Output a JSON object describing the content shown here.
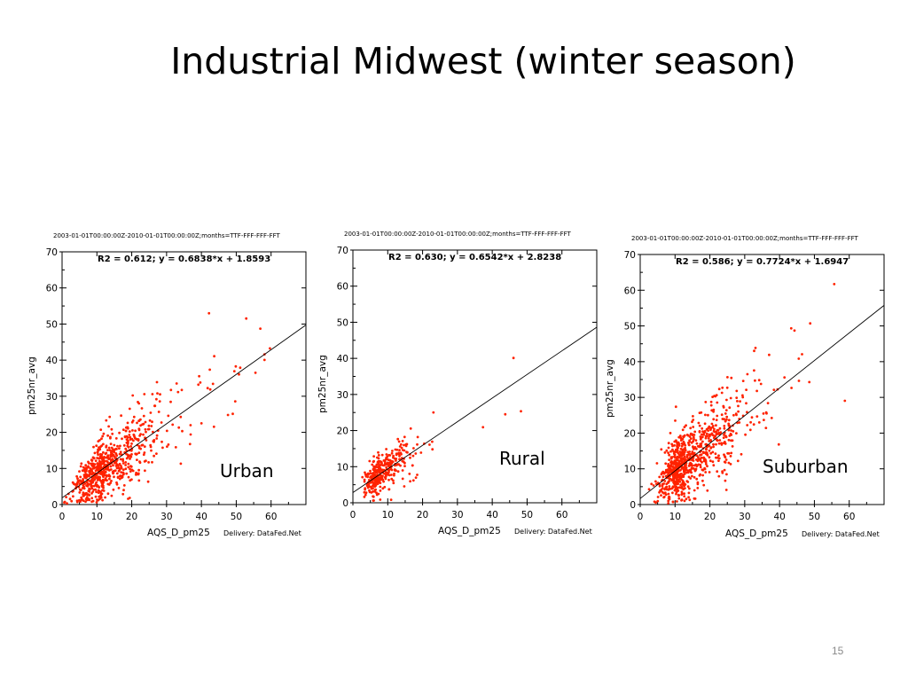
{
  "slide": {
    "title": "Industrial Midwest (winter season)",
    "page_number": "15"
  },
  "chart_data": [
    {
      "type": "scatter",
      "header": "2003-01-01T00:00:00Z-2010-01-01T00:00:00Z;months=TTF-FFF-FFF-FFT",
      "equation": "R2 = 0.612; y = 0.6838*x + 1.8593",
      "region_label": "Urban",
      "xlabel": "AQS_D_pm25",
      "ylabel": "pm25nr_avg",
      "delivery": "Delivery: DataFed.Net",
      "xlim": [
        0,
        70
      ],
      "ylim": [
        0,
        70
      ],
      "xticks": [
        0,
        10,
        20,
        30,
        40,
        50,
        60
      ],
      "yticks": [
        0,
        10,
        20,
        30,
        40,
        50,
        60,
        70
      ],
      "fit": {
        "slope": 0.6838,
        "intercept": 1.8593,
        "r2": 0.612
      },
      "point_color": "#ff2200",
      "cloud": {
        "x_center": 12,
        "x_spread": 9,
        "x_max": 62,
        "residual_sd": 4.2,
        "count": 700
      }
    },
    {
      "type": "scatter",
      "header": "2003-01-01T00:00:00Z-2010-01-01T00:00:00Z;months=TTF-FFF-FFF-FFT",
      "equation": "R2 = 0.630; y = 0.6542*x + 2.8238",
      "region_label": "Rural",
      "xlabel": "AQS_D_pm25",
      "ylabel": "pm25nr_avg",
      "delivery": "Delivery: DataFed.Net",
      "xlim": [
        0,
        70
      ],
      "ylim": [
        0,
        70
      ],
      "xticks": [
        0,
        10,
        20,
        30,
        40,
        50,
        60
      ],
      "yticks": [
        0,
        10,
        20,
        30,
        40,
        50,
        60,
        70
      ],
      "fit": {
        "slope": 0.6542,
        "intercept": 2.8238,
        "r2": 0.63
      },
      "point_color": "#ff2200",
      "cloud": {
        "x_center": 8,
        "x_spread": 5.5,
        "x_max": 50,
        "residual_sd": 3.0,
        "count": 330
      }
    },
    {
      "type": "scatter",
      "header": "2003-01-01T00:00:00Z-2010-01-01T00:00:00Z;months=TTF-FFF-FFF-FFT",
      "equation": "R2 = 0.586; y = 0.7724*x + 1.6947",
      "region_label": "Suburban",
      "xlabel": "AQS_D_pm25",
      "ylabel": "pm25nr_avg",
      "delivery": "Delivery: DataFed.Net",
      "xlim": [
        0,
        70
      ],
      "ylim": [
        0,
        70
      ],
      "xticks": [
        0,
        10,
        20,
        30,
        40,
        50,
        60
      ],
      "yticks": [
        0,
        10,
        20,
        30,
        40,
        50,
        60,
        70
      ],
      "fit": {
        "slope": 0.7724,
        "intercept": 1.6947,
        "r2": 0.586
      },
      "point_color": "#ff2200",
      "cloud": {
        "x_center": 13,
        "x_spread": 8.5,
        "x_max": 60,
        "residual_sd": 4.6,
        "count": 800
      }
    }
  ]
}
